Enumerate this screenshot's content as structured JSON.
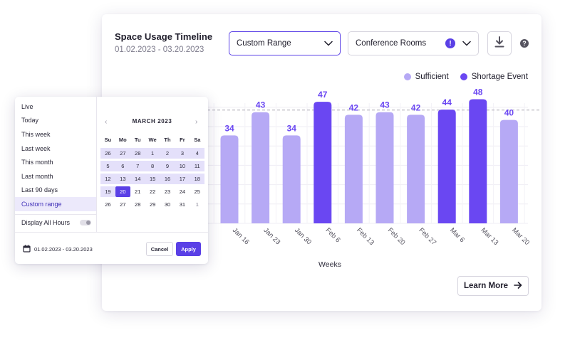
{
  "header": {
    "title": "Space Usage Timeline",
    "date_range": "01.02.2023 - 03.20.2023"
  },
  "controls": {
    "range_select": "Custom Range",
    "room_select": "Conference Rooms",
    "alert_badge": "!",
    "help": "?"
  },
  "legend": [
    {
      "label": "Sufficient",
      "color": "#b6a9f5"
    },
    {
      "label": "Shortage Event",
      "color": "#6a47f2"
    }
  ],
  "learn_more": "Learn More",
  "chart_data": {
    "type": "bar",
    "xlabel": "Weeks",
    "categories": [
      "Jan 16",
      "Jan 23",
      "Jan 30",
      "Feb 6",
      "Feb 13",
      "Feb 20",
      "Feb 27",
      "Mar 6",
      "Mar 13",
      "Mar 20"
    ],
    "values": [
      34,
      43,
      34,
      47,
      42,
      43,
      42,
      44,
      48,
      40
    ],
    "event": [
      "Sufficient",
      "Sufficient",
      "Sufficient",
      "Shortage Event",
      "Sufficient",
      "Sufficient",
      "Sufficient",
      "Shortage Event",
      "Shortage Event",
      "Sufficient"
    ],
    "threshold": 43.8,
    "ylim": [
      0,
      52
    ],
    "colors": {
      "sufficient": "#b6a9f5",
      "shortage": "#6a47f2",
      "value_label": "#6a47f2"
    }
  },
  "date_picker": {
    "presets": [
      "Live",
      "Today",
      "This week",
      "Last week",
      "This month",
      "Last month",
      "Last 90 days",
      "Custom range"
    ],
    "active_preset": "Custom range",
    "display_all_hours": "Display All Hours",
    "month_title": "MARCH 2023",
    "weekdays": [
      "Su",
      "Mo",
      "Tu",
      "We",
      "Th",
      "Fr",
      "Sa"
    ],
    "weeks": [
      [
        "26",
        "27",
        "28",
        "1",
        "2",
        "3",
        "4"
      ],
      [
        "5",
        "6",
        "7",
        "8",
        "9",
        "10",
        "11"
      ],
      [
        "12",
        "13",
        "14",
        "15",
        "16",
        "17",
        "18"
      ],
      [
        "19",
        "20",
        "21",
        "22",
        "23",
        "24",
        "25"
      ],
      [
        "26",
        "27",
        "28",
        "29",
        "30",
        "31",
        "1"
      ]
    ],
    "range_start": "01.02.2023",
    "range_end": "03.20.2023",
    "footer_range": "01.02.2023 - 03.20.2023",
    "cancel": "Cancel",
    "apply": "Apply"
  }
}
